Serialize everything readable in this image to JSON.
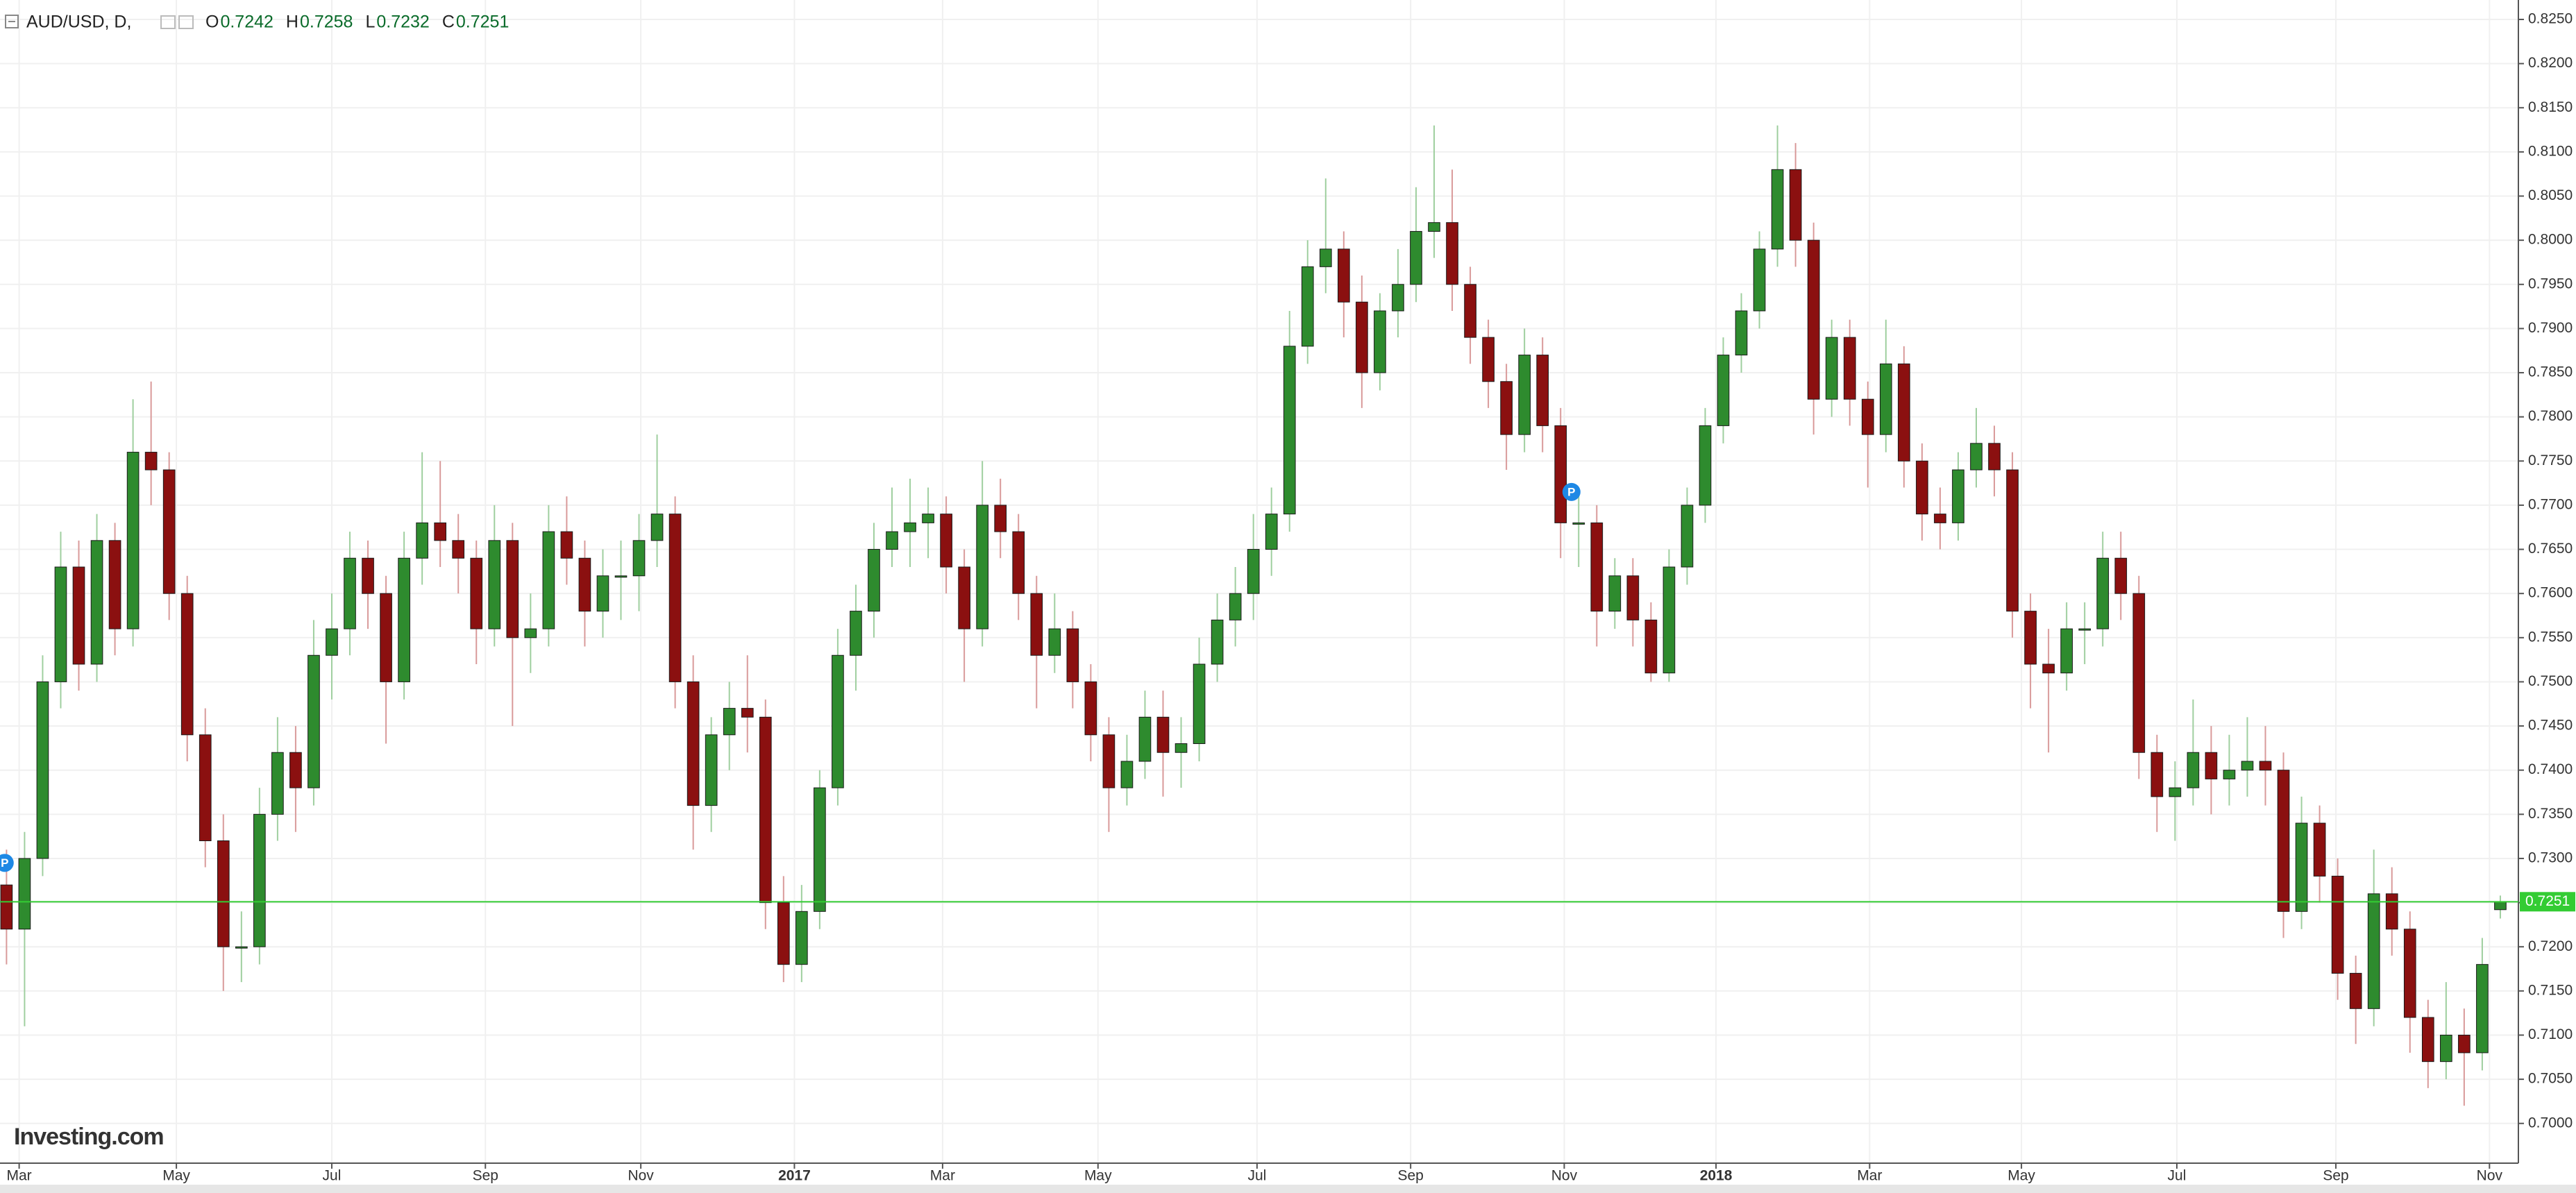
{
  "chart_data": {
    "type": "candlestick",
    "symbol": "AUD/USD, D,",
    "brand": "Investing.com",
    "ohlc_fields": [
      "O",
      "H",
      "L",
      "C"
    ],
    "up_color": "#2e8b2e",
    "down_color": "#8b1010",
    "price_line_color": "#33cc33",
    "grid": true,
    "xlim": [
      -0.36,
      139
    ],
    "ylim": [
      0.6955,
      0.8272
    ],
    "yticks": [
      {
        "value": 0.7,
        "label": "0.7000"
      },
      {
        "value": 0.705,
        "label": "0.7050"
      },
      {
        "value": 0.71,
        "label": "0.7100"
      },
      {
        "value": 0.715,
        "label": "0.7150"
      },
      {
        "value": 0.72,
        "label": "0.7200"
      },
      {
        "value": 0.725,
        "label": "0.7250"
      },
      {
        "value": 0.73,
        "label": "0.7300"
      },
      {
        "value": 0.735,
        "label": "0.7350"
      },
      {
        "value": 0.74,
        "label": "0.7400"
      },
      {
        "value": 0.745,
        "label": "0.7450"
      },
      {
        "value": 0.75,
        "label": "0.7500"
      },
      {
        "value": 0.755,
        "label": "0.7550"
      },
      {
        "value": 0.76,
        "label": "0.7600"
      },
      {
        "value": 0.765,
        "label": "0.7650"
      },
      {
        "value": 0.77,
        "label": "0.7700"
      },
      {
        "value": 0.775,
        "label": "0.7750"
      },
      {
        "value": 0.78,
        "label": "0.7800"
      },
      {
        "value": 0.785,
        "label": "0.7850"
      },
      {
        "value": 0.79,
        "label": "0.7900"
      },
      {
        "value": 0.795,
        "label": "0.7950"
      },
      {
        "value": 0.8,
        "label": "0.8000"
      },
      {
        "value": 0.805,
        "label": "0.8050"
      },
      {
        "value": 0.81,
        "label": "0.8100"
      },
      {
        "value": 0.815,
        "label": "0.8150"
      },
      {
        "value": 0.82,
        "label": "0.8200"
      },
      {
        "value": 0.825,
        "label": "0.8250"
      }
    ],
    "xticks": [
      {
        "value": 0.7,
        "label": "Mar"
      },
      {
        "value": 9.4,
        "label": "May"
      },
      {
        "value": 18,
        "label": "Jul"
      },
      {
        "value": 26.5,
        "label": "Sep"
      },
      {
        "value": 35.1,
        "label": "Nov"
      },
      {
        "value": 43.6,
        "label": "2017"
      },
      {
        "value": 51.8,
        "label": "Mar"
      },
      {
        "value": 60.4,
        "label": "May"
      },
      {
        "value": 69.2,
        "label": "Jul"
      },
      {
        "value": 77.7,
        "label": "Sep"
      },
      {
        "value": 86.2,
        "label": "Nov"
      },
      {
        "value": 94.6,
        "label": "2018"
      },
      {
        "value": 103.1,
        "label": "Mar"
      },
      {
        "value": 111.5,
        "label": "May"
      },
      {
        "value": 120.1,
        "label": "Jul"
      },
      {
        "value": 128.9,
        "label": "Sep"
      },
      {
        "value": 137.4,
        "label": "Nov"
      }
    ],
    "markers": [
      {
        "label": "P",
        "x": -0.1,
        "y": 0.7295
      },
      {
        "label": "P",
        "x": 86.6,
        "y": 0.7715
      }
    ],
    "ohlc": [
      [
        0.727,
        0.731,
        0.718,
        0.722
      ],
      [
        0.722,
        0.733,
        0.711,
        0.73
      ],
      [
        0.73,
        0.753,
        0.728,
        0.75
      ],
      [
        0.75,
        0.767,
        0.747,
        0.763
      ],
      [
        0.763,
        0.766,
        0.749,
        0.752
      ],
      [
        0.752,
        0.769,
        0.75,
        0.766
      ],
      [
        0.766,
        0.768,
        0.753,
        0.756
      ],
      [
        0.756,
        0.782,
        0.754,
        0.776
      ],
      [
        0.776,
        0.784,
        0.77,
        0.774
      ],
      [
        0.774,
        0.776,
        0.757,
        0.76
      ],
      [
        0.76,
        0.762,
        0.741,
        0.744
      ],
      [
        0.744,
        0.747,
        0.729,
        0.732
      ],
      [
        0.732,
        0.735,
        0.715,
        0.72
      ],
      [
        0.72,
        0.724,
        0.716,
        0.72
      ],
      [
        0.72,
        0.738,
        0.718,
        0.735
      ],
      [
        0.735,
        0.746,
        0.732,
        0.742
      ],
      [
        0.742,
        0.745,
        0.733,
        0.738
      ],
      [
        0.738,
        0.757,
        0.736,
        0.753
      ],
      [
        0.753,
        0.76,
        0.748,
        0.756
      ],
      [
        0.756,
        0.767,
        0.753,
        0.764
      ],
      [
        0.764,
        0.766,
        0.756,
        0.76
      ],
      [
        0.76,
        0.762,
        0.743,
        0.75
      ],
      [
        0.75,
        0.767,
        0.748,
        0.764
      ],
      [
        0.764,
        0.776,
        0.761,
        0.768
      ],
      [
        0.768,
        0.775,
        0.763,
        0.766
      ],
      [
        0.766,
        0.769,
        0.76,
        0.764
      ],
      [
        0.764,
        0.766,
        0.752,
        0.756
      ],
      [
        0.756,
        0.77,
        0.754,
        0.766
      ],
      [
        0.766,
        0.768,
        0.745,
        0.755
      ],
      [
        0.755,
        0.76,
        0.751,
        0.756
      ],
      [
        0.756,
        0.77,
        0.754,
        0.767
      ],
      [
        0.767,
        0.771,
        0.761,
        0.764
      ],
      [
        0.764,
        0.766,
        0.754,
        0.758
      ],
      [
        0.758,
        0.765,
        0.755,
        0.762
      ],
      [
        0.762,
        0.766,
        0.757,
        0.762
      ],
      [
        0.762,
        0.769,
        0.758,
        0.766
      ],
      [
        0.766,
        0.778,
        0.763,
        0.769
      ],
      [
        0.769,
        0.771,
        0.747,
        0.75
      ],
      [
        0.75,
        0.753,
        0.731,
        0.736
      ],
      [
        0.736,
        0.746,
        0.733,
        0.744
      ],
      [
        0.744,
        0.75,
        0.74,
        0.747
      ],
      [
        0.747,
        0.753,
        0.742,
        0.746
      ],
      [
        0.746,
        0.748,
        0.722,
        0.725
      ],
      [
        0.725,
        0.728,
        0.716,
        0.718
      ],
      [
        0.718,
        0.727,
        0.716,
        0.724
      ],
      [
        0.724,
        0.74,
        0.722,
        0.738
      ],
      [
        0.738,
        0.756,
        0.736,
        0.753
      ],
      [
        0.753,
        0.761,
        0.749,
        0.758
      ],
      [
        0.758,
        0.768,
        0.755,
        0.765
      ],
      [
        0.765,
        0.772,
        0.763,
        0.767
      ],
      [
        0.767,
        0.773,
        0.763,
        0.768
      ],
      [
        0.768,
        0.772,
        0.764,
        0.769
      ],
      [
        0.769,
        0.771,
        0.76,
        0.763
      ],
      [
        0.763,
        0.765,
        0.75,
        0.756
      ],
      [
        0.756,
        0.775,
        0.754,
        0.77
      ],
      [
        0.77,
        0.773,
        0.764,
        0.767
      ],
      [
        0.767,
        0.769,
        0.757,
        0.76
      ],
      [
        0.76,
        0.762,
        0.747,
        0.753
      ],
      [
        0.753,
        0.76,
        0.751,
        0.756
      ],
      [
        0.756,
        0.758,
        0.747,
        0.75
      ],
      [
        0.75,
        0.752,
        0.741,
        0.744
      ],
      [
        0.744,
        0.746,
        0.733,
        0.738
      ],
      [
        0.738,
        0.744,
        0.736,
        0.741
      ],
      [
        0.741,
        0.749,
        0.739,
        0.746
      ],
      [
        0.746,
        0.749,
        0.737,
        0.742
      ],
      [
        0.742,
        0.746,
        0.738,
        0.743
      ],
      [
        0.743,
        0.755,
        0.741,
        0.752
      ],
      [
        0.752,
        0.76,
        0.75,
        0.757
      ],
      [
        0.757,
        0.763,
        0.754,
        0.76
      ],
      [
        0.76,
        0.769,
        0.757,
        0.765
      ],
      [
        0.765,
        0.772,
        0.762,
        0.769
      ],
      [
        0.769,
        0.792,
        0.767,
        0.788
      ],
      [
        0.788,
        0.8,
        0.786,
        0.797
      ],
      [
        0.797,
        0.807,
        0.794,
        0.799
      ],
      [
        0.799,
        0.801,
        0.789,
        0.793
      ],
      [
        0.793,
        0.796,
        0.781,
        0.785
      ],
      [
        0.785,
        0.794,
        0.783,
        0.792
      ],
      [
        0.792,
        0.799,
        0.789,
        0.795
      ],
      [
        0.795,
        0.806,
        0.793,
        0.801
      ],
      [
        0.801,
        0.813,
        0.798,
        0.802
      ],
      [
        0.802,
        0.808,
        0.792,
        0.795
      ],
      [
        0.795,
        0.797,
        0.786,
        0.789
      ],
      [
        0.789,
        0.791,
        0.781,
        0.784
      ],
      [
        0.784,
        0.786,
        0.774,
        0.778
      ],
      [
        0.778,
        0.79,
        0.776,
        0.787
      ],
      [
        0.787,
        0.789,
        0.776,
        0.779
      ],
      [
        0.779,
        0.781,
        0.764,
        0.768
      ],
      [
        0.768,
        0.772,
        0.763,
        0.768
      ],
      [
        0.768,
        0.77,
        0.754,
        0.758
      ],
      [
        0.758,
        0.764,
        0.756,
        0.762
      ],
      [
        0.762,
        0.764,
        0.754,
        0.757
      ],
      [
        0.757,
        0.759,
        0.75,
        0.751
      ],
      [
        0.751,
        0.765,
        0.75,
        0.763
      ],
      [
        0.763,
        0.772,
        0.761,
        0.77
      ],
      [
        0.77,
        0.781,
        0.768,
        0.779
      ],
      [
        0.779,
        0.789,
        0.777,
        0.787
      ],
      [
        0.787,
        0.794,
        0.785,
        0.792
      ],
      [
        0.792,
        0.801,
        0.79,
        0.799
      ],
      [
        0.799,
        0.813,
        0.797,
        0.808
      ],
      [
        0.808,
        0.811,
        0.797,
        0.8
      ],
      [
        0.8,
        0.802,
        0.778,
        0.782
      ],
      [
        0.782,
        0.791,
        0.78,
        0.789
      ],
      [
        0.789,
        0.791,
        0.779,
        0.782
      ],
      [
        0.782,
        0.784,
        0.772,
        0.778
      ],
      [
        0.778,
        0.791,
        0.776,
        0.786
      ],
      [
        0.786,
        0.788,
        0.772,
        0.775
      ],
      [
        0.775,
        0.777,
        0.766,
        0.769
      ],
      [
        0.769,
        0.772,
        0.765,
        0.768
      ],
      [
        0.768,
        0.776,
        0.766,
        0.774
      ],
      [
        0.774,
        0.781,
        0.772,
        0.777
      ],
      [
        0.777,
        0.779,
        0.771,
        0.774
      ],
      [
        0.774,
        0.776,
        0.755,
        0.758
      ],
      [
        0.758,
        0.76,
        0.747,
        0.752
      ],
      [
        0.752,
        0.756,
        0.742,
        0.751
      ],
      [
        0.751,
        0.759,
        0.749,
        0.756
      ],
      [
        0.756,
        0.759,
        0.752,
        0.756
      ],
      [
        0.756,
        0.767,
        0.754,
        0.764
      ],
      [
        0.764,
        0.767,
        0.757,
        0.76
      ],
      [
        0.76,
        0.762,
        0.739,
        0.742
      ],
      [
        0.742,
        0.744,
        0.733,
        0.737
      ],
      [
        0.737,
        0.741,
        0.732,
        0.738
      ],
      [
        0.738,
        0.748,
        0.736,
        0.742
      ],
      [
        0.742,
        0.745,
        0.735,
        0.739
      ],
      [
        0.739,
        0.744,
        0.736,
        0.74
      ],
      [
        0.74,
        0.746,
        0.737,
        0.741
      ],
      [
        0.741,
        0.745,
        0.736,
        0.74
      ],
      [
        0.74,
        0.742,
        0.721,
        0.724
      ],
      [
        0.724,
        0.737,
        0.722,
        0.734
      ],
      [
        0.734,
        0.736,
        0.725,
        0.728
      ],
      [
        0.728,
        0.73,
        0.714,
        0.717
      ],
      [
        0.717,
        0.719,
        0.709,
        0.713
      ],
      [
        0.713,
        0.731,
        0.711,
        0.726
      ],
      [
        0.726,
        0.729,
        0.719,
        0.722
      ],
      [
        0.722,
        0.724,
        0.708,
        0.712
      ],
      [
        0.712,
        0.714,
        0.704,
        0.707
      ],
      [
        0.707,
        0.716,
        0.705,
        0.71
      ],
      [
        0.71,
        0.713,
        0.702,
        0.708
      ],
      [
        0.708,
        0.721,
        0.706,
        0.718
      ],
      [
        0.7242,
        0.7258,
        0.7232,
        0.7251
      ]
    ]
  }
}
